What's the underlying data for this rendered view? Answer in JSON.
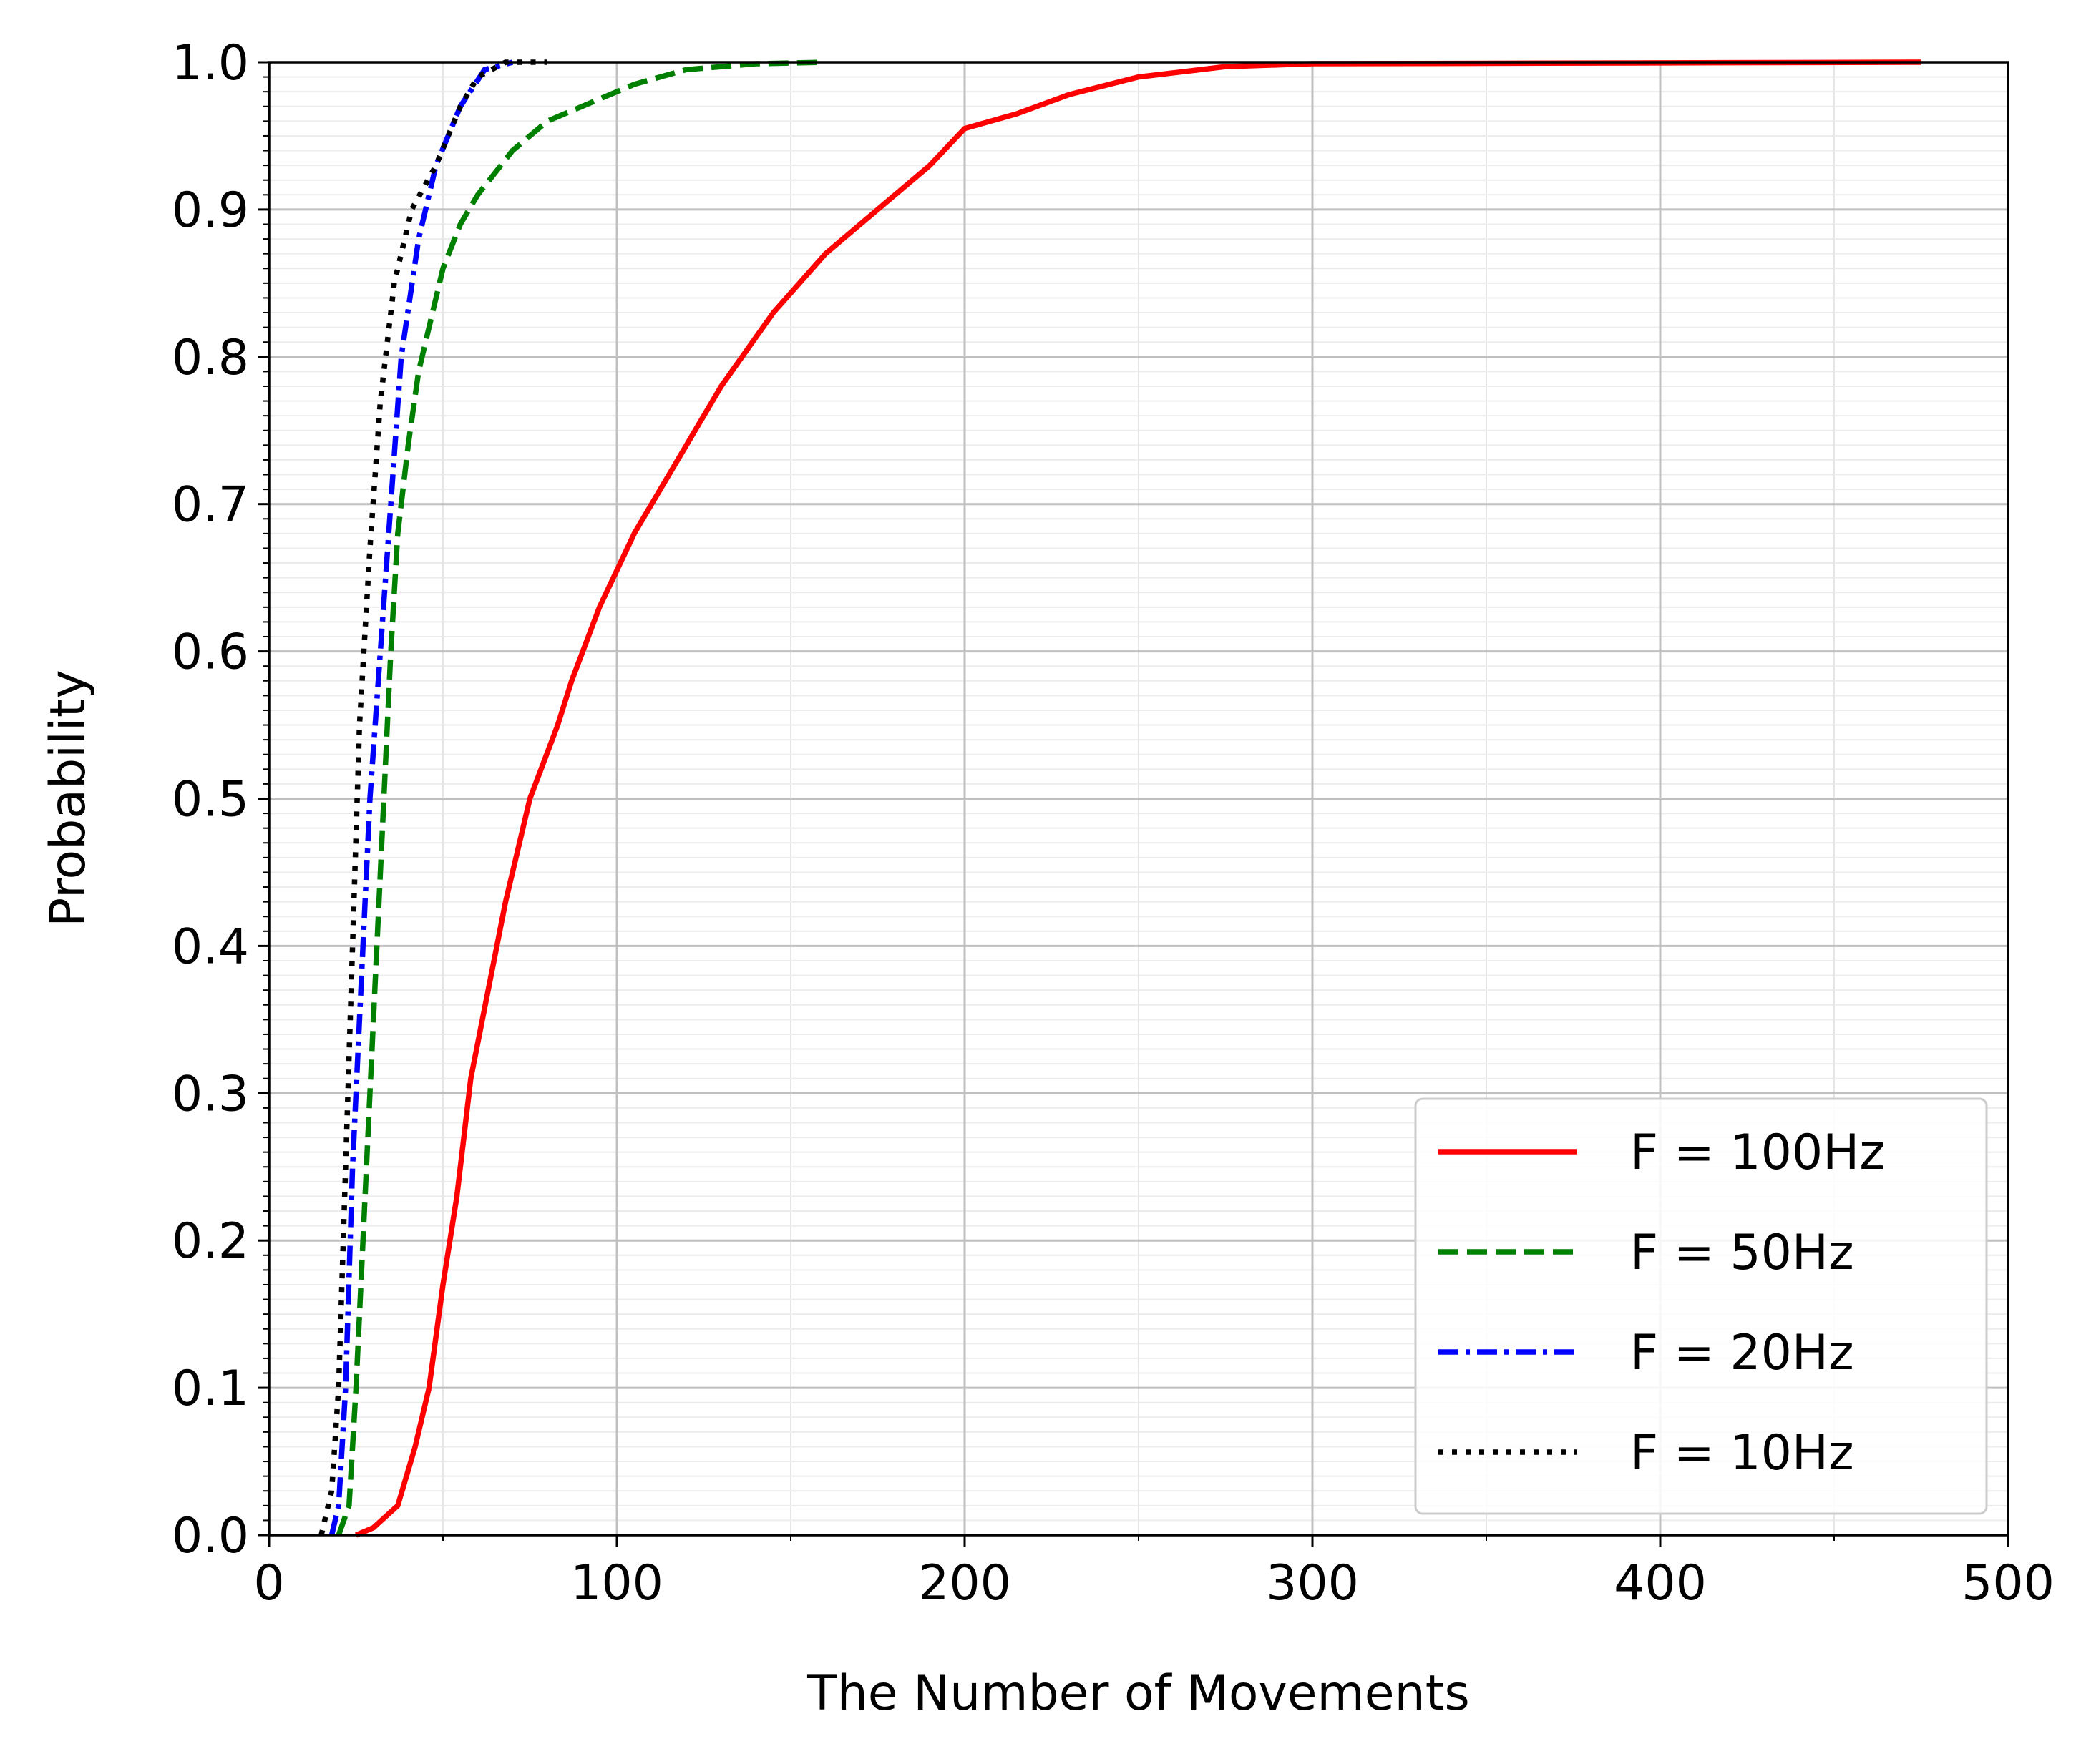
{
  "chart_data": {
    "type": "line",
    "xlabel": "The Number of Movements",
    "ylabel": "Probability",
    "xlim": [
      0,
      500
    ],
    "ylim": [
      0,
      1.0
    ],
    "xticks": [
      0,
      100,
      200,
      300,
      400,
      500
    ],
    "yticks": [
      {
        "value": 0,
        "label": "0.0"
      },
      0.1,
      0.2,
      0.3,
      0.4,
      0.5,
      0.6,
      0.7,
      0.8,
      0.9,
      {
        "value": 1,
        "label": "1.0"
      }
    ],
    "grid": true,
    "minor_grid": true,
    "legend": "lower right",
    "series": [
      {
        "name": "F = 100Hz",
        "color": "#ff0000",
        "linestyle": "solid",
        "x": [
          25,
          30,
          37,
          42,
          46,
          50,
          54,
          58,
          63,
          68,
          75,
          83,
          87,
          95,
          105,
          115,
          130,
          145,
          160,
          175,
          190,
          200,
          215,
          230,
          250,
          275,
          300,
          475
        ],
        "values": [
          0,
          0.005,
          0.02,
          0.06,
          0.1,
          0.17,
          0.23,
          0.31,
          0.37,
          0.43,
          0.5,
          0.55,
          0.58,
          0.63,
          0.68,
          0.72,
          0.78,
          0.83,
          0.87,
          0.9,
          0.93,
          0.955,
          0.965,
          0.978,
          0.99,
          0.997,
          0.999,
          1.0
        ]
      },
      {
        "name": "F = 50Hz",
        "color": "#008000",
        "linestyle": "dashed",
        "x": [
          20,
          23,
          25,
          27,
          29,
          31,
          33,
          35,
          37,
          40,
          43,
          47,
          50,
          55,
          60,
          70,
          80,
          95,
          105,
          120,
          140,
          160
        ],
        "values": [
          0,
          0.02,
          0.1,
          0.2,
          0.3,
          0.4,
          0.5,
          0.6,
          0.68,
          0.74,
          0.79,
          0.83,
          0.86,
          0.89,
          0.91,
          0.94,
          0.96,
          0.975,
          0.985,
          0.995,
          0.999,
          1.0
        ]
      },
      {
        "name": "F = 20Hz",
        "color": "#0000ff",
        "linestyle": "dashdot",
        "x": [
          18,
          20,
          22,
          24,
          27,
          29,
          32,
          35,
          38,
          43,
          48,
          55,
          62,
          70
        ],
        "values": [
          0,
          0.02,
          0.1,
          0.25,
          0.4,
          0.5,
          0.6,
          0.7,
          0.8,
          0.88,
          0.93,
          0.97,
          0.995,
          1.0
        ]
      },
      {
        "name": "F = 10Hz",
        "color": "#000000",
        "linestyle": "dotted",
        "x": [
          15,
          18,
          20,
          22,
          24,
          26,
          29,
          32,
          36,
          41,
          48,
          55,
          60,
          68,
          80
        ],
        "values": [
          0,
          0.03,
          0.1,
          0.25,
          0.4,
          0.55,
          0.67,
          0.77,
          0.85,
          0.9,
          0.93,
          0.97,
          0.99,
          1.0,
          1.0
        ]
      }
    ]
  }
}
